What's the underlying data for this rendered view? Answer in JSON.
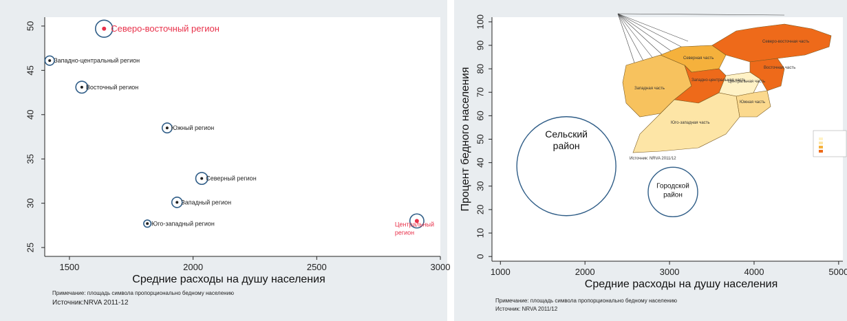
{
  "chart_data": [
    {
      "type": "scatter",
      "xlabel": "Средние расходы на душу населения",
      "ylabel": "",
      "xlim": [
        1400,
        3000
      ],
      "ylim": [
        24,
        51
      ],
      "xticks": [
        "1500",
        "2000",
        "2500",
        "3000"
      ],
      "yticks": [
        "25",
        "30",
        "35",
        "40",
        "45",
        "50"
      ],
      "points": [
        {
          "label": "Северо-восточный регион",
          "x": 1640,
          "y": 49.7,
          "r": 3.3,
          "highlight": true
        },
        {
          "label": "Западно-центральный регион",
          "x": 1420,
          "y": 46.1,
          "r": 1.8,
          "highlight": false
        },
        {
          "label": "Восточный регион",
          "x": 1550,
          "y": 43.1,
          "r": 2.3,
          "highlight": false
        },
        {
          "label": "Южный регион",
          "x": 1895,
          "y": 38.5,
          "r": 1.9,
          "highlight": false
        },
        {
          "label": "Северный регион",
          "x": 2035,
          "y": 32.8,
          "r": 2.3,
          "highlight": false
        },
        {
          "label": "Западный регион",
          "x": 1935,
          "y": 30.1,
          "r": 2.0,
          "highlight": false
        },
        {
          "label": "Юго-западный регион",
          "x": 1815,
          "y": 27.7,
          "r": 1.4,
          "highlight": false
        },
        {
          "label": "Центральный регион",
          "x": 2905,
          "y": 28.0,
          "r": 2.7,
          "highlight": true
        }
      ],
      "note": "Примечание: площадь символа пропорционально бедному населению",
      "source": "Источник:NRVA 2011-12"
    },
    {
      "type": "scatter",
      "xlabel": "Средние расходы на душу населения",
      "ylabel": "Процент бедного населения",
      "xlim": [
        900,
        5050
      ],
      "ylim": [
        -2,
        102
      ],
      "xticks": [
        "1000",
        "2000",
        "3000",
        "4000",
        "5000"
      ],
      "yticks": [
        "0",
        "10",
        "20",
        "30",
        "40",
        "50",
        "60",
        "70",
        "80",
        "90",
        "100"
      ],
      "points": [
        {
          "label": "Сельский район",
          "x": 1780,
          "y": 38.5,
          "r": 10
        },
        {
          "label": "Городской район",
          "x": 3040,
          "y": 27.5,
          "r": 4.2
        }
      ],
      "note": "Примечание: площадь символа пропорционально бедному населению",
      "source": "Источник: NRVA 2011/12"
    }
  ],
  "map": {
    "regions": [
      {
        "name": "Северная часть",
        "color": "#f5b13c"
      },
      {
        "name": "Северо-восточная часть",
        "color": "#ee6a1a"
      },
      {
        "name": "Западно-центральная часть",
        "color": "#ee6a1a"
      },
      {
        "name": "Центральная часть",
        "color": "#fff2c6"
      },
      {
        "name": "Восточная часть",
        "color": "#ee6a1a"
      },
      {
        "name": "Западная часть",
        "color": "#f7c25e"
      },
      {
        "name": "Южная часть",
        "color": "#fbd98e"
      },
      {
        "name": "Юго-западная часть",
        "color": "#fde5a6"
      }
    ],
    "source_label": "Источник: NRVA 2011/12"
  },
  "colors": {
    "panel_bg": "#e9edf0",
    "plot_bg": "#ffffff",
    "bubble": "#2f5d87",
    "highlight": "#e8314a"
  }
}
